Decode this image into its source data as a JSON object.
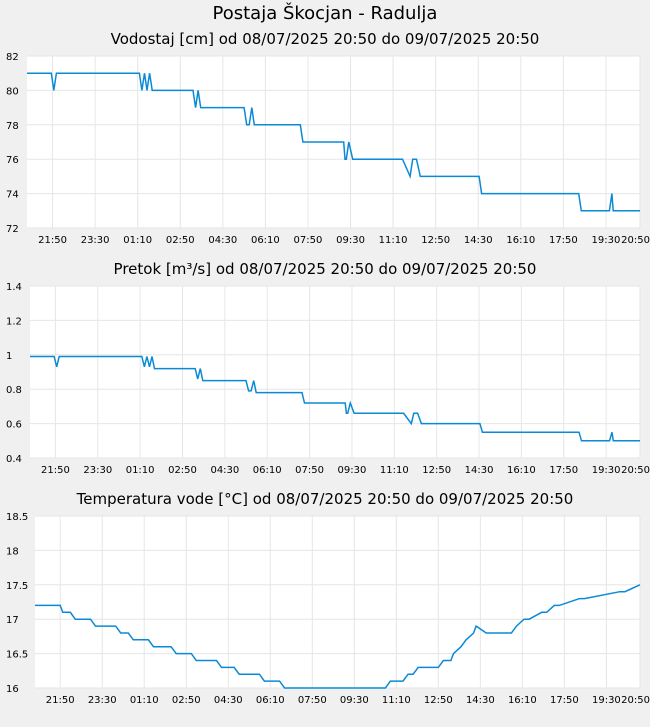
{
  "page_title": "Postaja Škocjan - Radulja",
  "colors": {
    "background": "#f0f0f0",
    "plot": "#ffffff",
    "line": "#0a8ad6",
    "grid": "#e6e6e6"
  },
  "chart_data": [
    {
      "type": "line",
      "title": "Vodostaj [cm] od 08/07/2025 20:50 do 09/07/2025 20:50",
      "xlabel": "",
      "ylabel": "",
      "xlim": [
        0,
        24
      ],
      "ylim": [
        72,
        82
      ],
      "yticks": [
        72,
        74,
        76,
        78,
        80,
        82
      ],
      "ytick_labels": [
        "72",
        "74",
        "76",
        "78",
        "80",
        "82"
      ],
      "grid": true,
      "series": [
        {
          "name": "Vodostaj",
          "x": [
            0,
            0.95,
            1.05,
            1.15,
            4.4,
            4.5,
            4.6,
            4.7,
            4.8,
            4.9,
            5.0,
            6.5,
            6.6,
            6.7,
            6.8,
            8.5,
            8.6,
            8.7,
            8.8,
            8.9,
            9.0,
            10.7,
            10.8,
            10.9,
            11.0,
            12.4,
            12.45,
            12.5,
            12.6,
            12.75,
            12.9,
            13.0,
            14.7,
            15.0,
            15.1,
            15.25,
            15.4,
            15.5,
            17.7,
            17.8,
            17.9,
            18.0,
            18.2,
            18.3,
            18.4,
            18.5,
            21.6,
            21.7,
            21.8,
            22.7,
            22.8,
            22.9,
            22.95,
            23.1,
            24
          ],
          "y": [
            81,
            81,
            80,
            81,
            81,
            80,
            81,
            80,
            81,
            80,
            80,
            80,
            79,
            80,
            79,
            79,
            78,
            78,
            79,
            78,
            78,
            78,
            77,
            77,
            77,
            77,
            76,
            76,
            77,
            76,
            76,
            76,
            76,
            75,
            76,
            76,
            75,
            75,
            75,
            74,
            74,
            74,
            74,
            74,
            74,
            74,
            74,
            73,
            73,
            73,
            73,
            74,
            73,
            73,
            73
          ]
        }
      ],
      "x_tick_labels": [
        "21:50",
        "23:30",
        "01:10",
        "02:50",
        "04:30",
        "06:10",
        "07:50",
        "09:30",
        "11:10",
        "12:50",
        "14:30",
        "16:10",
        "17:50",
        "19:30",
        "20:50"
      ],
      "x_tick_values": [
        1,
        2.667,
        4.333,
        6,
        7.667,
        9.333,
        11,
        12.667,
        14.333,
        16,
        17.667,
        19.333,
        21,
        22.667,
        24
      ]
    },
    {
      "type": "line",
      "title": "Pretok [m³/s] od 08/07/2025 20:50 do 09/07/2025 20:50",
      "xlabel": "",
      "ylabel": "",
      "xlim": [
        0,
        24
      ],
      "ylim": [
        0.4,
        1.4
      ],
      "yticks": [
        0.4,
        0.6,
        0.8,
        1.0,
        1.2,
        1.4
      ],
      "ytick_labels": [
        "0.4",
        "0.6",
        "0.8",
        "1",
        "1.2",
        "1.4"
      ],
      "grid": true,
      "series": [
        {
          "name": "Pretok",
          "x": [
            0,
            0.95,
            1.05,
            1.15,
            4.4,
            4.5,
            4.6,
            4.7,
            4.8,
            4.9,
            5.0,
            6.5,
            6.6,
            6.7,
            6.8,
            8.5,
            8.6,
            8.7,
            8.8,
            8.9,
            9.0,
            10.7,
            10.8,
            10.9,
            11.0,
            12.4,
            12.45,
            12.5,
            12.6,
            12.75,
            12.9,
            13.0,
            14.7,
            15.0,
            15.1,
            15.25,
            15.4,
            15.5,
            17.7,
            17.8,
            17.9,
            18.0,
            18.2,
            18.3,
            18.4,
            18.5,
            21.6,
            21.7,
            21.8,
            22.7,
            22.8,
            22.9,
            22.95,
            23.1,
            24
          ],
          "y": [
            0.99,
            0.99,
            0.93,
            0.99,
            0.99,
            0.93,
            0.99,
            0.93,
            0.99,
            0.92,
            0.92,
            0.92,
            0.86,
            0.92,
            0.85,
            0.85,
            0.79,
            0.79,
            0.85,
            0.78,
            0.78,
            0.78,
            0.72,
            0.72,
            0.72,
            0.72,
            0.66,
            0.66,
            0.72,
            0.66,
            0.66,
            0.66,
            0.66,
            0.6,
            0.66,
            0.66,
            0.6,
            0.6,
            0.6,
            0.55,
            0.55,
            0.55,
            0.55,
            0.55,
            0.55,
            0.55,
            0.55,
            0.5,
            0.5,
            0.5,
            0.5,
            0.55,
            0.5,
            0.5,
            0.5
          ]
        }
      ],
      "x_tick_labels": [
        "21:50",
        "23:30",
        "01:10",
        "02:50",
        "04:30",
        "06:10",
        "07:50",
        "09:30",
        "11:10",
        "12:50",
        "14:30",
        "16:10",
        "17:50",
        "19:30",
        "20:50"
      ],
      "x_tick_values": [
        1,
        2.667,
        4.333,
        6,
        7.667,
        9.333,
        11,
        12.667,
        14.333,
        16,
        17.667,
        19.333,
        21,
        22.667,
        24
      ]
    },
    {
      "type": "line",
      "title": "Temperatura vode [°C] od 08/07/2025 20:50 do 09/07/2025 20:50",
      "xlabel": "",
      "ylabel": "",
      "xlim": [
        0,
        24
      ],
      "ylim": [
        16,
        18.5
      ],
      "yticks": [
        16,
        16.5,
        17,
        17.5,
        18,
        18.5
      ],
      "ytick_labels": [
        "16",
        "16.5",
        "17",
        "17.5",
        "18",
        "18.5"
      ],
      "grid": true,
      "series": [
        {
          "name": "Temperatura vode",
          "x": [
            0,
            1.0,
            1.1,
            1.4,
            1.6,
            2.2,
            2.4,
            3.2,
            3.4,
            3.7,
            3.9,
            4.5,
            4.7,
            5.4,
            5.6,
            6.2,
            6.4,
            7.2,
            7.4,
            7.9,
            8.1,
            8.9,
            9.1,
            9.7,
            9.9,
            10.9,
            11.1,
            12.0,
            12.2,
            13.9,
            14.1,
            14.6,
            14.8,
            15.0,
            15.2,
            15.6,
            15.8,
            16.0,
            16.2,
            16.5,
            16.6,
            16.9,
            17.1,
            17.4,
            17.5,
            17.9,
            18.1,
            18.5,
            18.7,
            18.9,
            19.1,
            19.4,
            19.6,
            20.1,
            20.3,
            20.6,
            20.8,
            21.6,
            21.8,
            23.2,
            23.4,
            24
          ],
          "y": [
            17.2,
            17.2,
            17.1,
            17.1,
            17.0,
            17.0,
            16.9,
            16.9,
            16.8,
            16.8,
            16.7,
            16.7,
            16.6,
            16.6,
            16.5,
            16.5,
            16.4,
            16.4,
            16.3,
            16.3,
            16.2,
            16.2,
            16.1,
            16.1,
            16.0,
            16.0,
            16.0,
            16.0,
            16.0,
            16.0,
            16.1,
            16.1,
            16.2,
            16.2,
            16.3,
            16.3,
            16.3,
            16.3,
            16.4,
            16.4,
            16.5,
            16.6,
            16.7,
            16.8,
            16.9,
            16.8,
            16.8,
            16.8,
            16.8,
            16.8,
            16.9,
            17.0,
            17.0,
            17.1,
            17.1,
            17.2,
            17.2,
            17.3,
            17.3,
            17.4,
            17.4,
            17.5
          ]
        }
      ],
      "x_tick_labels": [
        "21:50",
        "23:30",
        "01:10",
        "02:50",
        "04:30",
        "06:10",
        "07:50",
        "09:30",
        "11:10",
        "12:50",
        "14:30",
        "16:10",
        "17:50",
        "19:30",
        "20:50"
      ],
      "x_tick_values": [
        1,
        2.667,
        4.333,
        6,
        7.667,
        9.333,
        11,
        12.667,
        14.333,
        16,
        17.667,
        19.333,
        21,
        22.667,
        24
      ]
    }
  ]
}
